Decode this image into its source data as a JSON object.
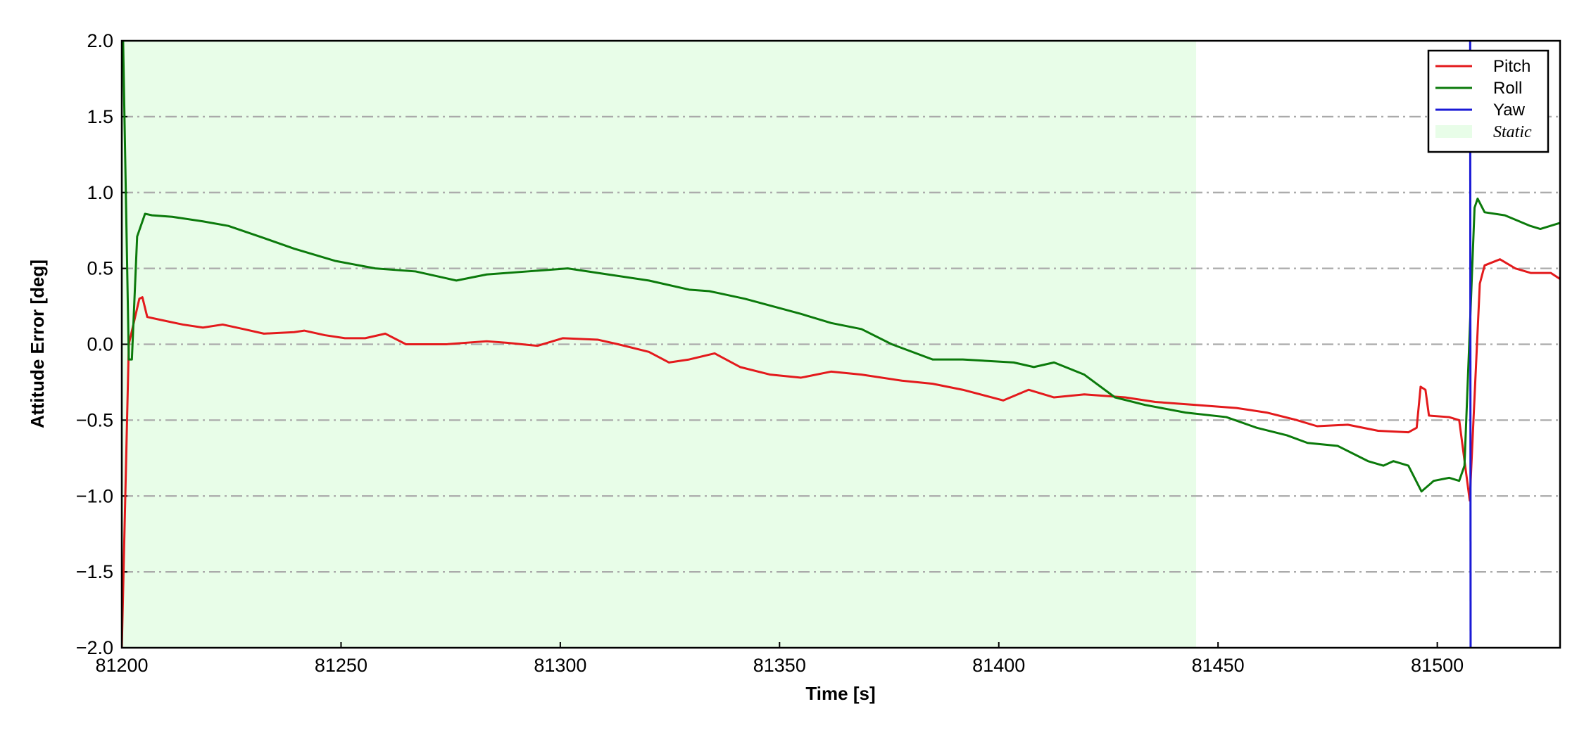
{
  "chart_data": {
    "type": "line",
    "xlabel": "Time [s]",
    "ylabel": "Attitude Error [deg]",
    "xlim": [
      81200,
      81528
    ],
    "ylim": [
      -2,
      2
    ],
    "xticks": [
      81200,
      81250,
      81300,
      81350,
      81400,
      81450,
      81500
    ],
    "yticks": [
      {
        "value": -2,
        "label": "−2.0"
      },
      {
        "value": -1.5,
        "label": "−1.5"
      },
      {
        "value": -1,
        "label": "−1.0"
      },
      {
        "value": -0.5,
        "label": "−0.5"
      },
      {
        "value": 0,
        "label": "0.0"
      },
      {
        "value": 0.5,
        "label": "0.5"
      },
      {
        "value": 1,
        "label": "1.0"
      },
      {
        "value": 1.5,
        "label": "1.5"
      },
      {
        "value": 2,
        "label": "2.0"
      }
    ],
    "grid": true,
    "legend": "upper right",
    "span": {
      "label": "Static",
      "xlim": [
        81200,
        81445
      ],
      "color": "#e8fde8"
    },
    "series": [
      {
        "name": "Pitch",
        "color": "#e31a1c",
        "x": [
          81200,
          81201.6,
          81204,
          81204.7,
          81205.8,
          81209,
          81213.9,
          81218.5,
          81223,
          81227.8,
          81232.4,
          81239.3,
          81241.6,
          81246.3,
          81250.9,
          81255.5,
          81260.1,
          81264.8,
          81274,
          81283.2,
          81287.8,
          81294.8,
          81300.6,
          81308.6,
          81313.2,
          81320.2,
          81324.8,
          81329.4,
          81335.2,
          81341,
          81347.9,
          81354.9,
          81361.8,
          81368.7,
          81377.9,
          81384.9,
          81391.8,
          81401,
          81406.8,
          81412.6,
          81419.5,
          81428.8,
          81435.7,
          81444.9,
          81454.2,
          81461.1,
          81468,
          81472.6,
          81479.6,
          81486.5,
          81493.4,
          81495.3,
          81496.2,
          81497.3,
          81498.1,
          81502.7,
          81505,
          81507.4,
          81509.7,
          81510.8,
          81514.3,
          81517.8,
          81521.3,
          81525.9,
          81528
        ],
        "values": [
          -2.0,
          0.0,
          0.3,
          0.31,
          0.18,
          0.16,
          0.13,
          0.11,
          0.13,
          0.1,
          0.07,
          0.08,
          0.09,
          0.06,
          0.04,
          0.04,
          0.07,
          0.0,
          0.0,
          0.02,
          0.01,
          -0.01,
          0.04,
          0.03,
          0.0,
          -0.05,
          -0.12,
          -0.1,
          -0.06,
          -0.15,
          -0.2,
          -0.22,
          -0.18,
          -0.2,
          -0.24,
          -0.26,
          -0.3,
          -0.37,
          -0.3,
          -0.35,
          -0.33,
          -0.35,
          -0.38,
          -0.4,
          -0.42,
          -0.45,
          -0.5,
          -0.54,
          -0.53,
          -0.57,
          -0.58,
          -0.55,
          -0.28,
          -0.3,
          -0.47,
          -0.48,
          -0.5,
          -1.03,
          0.4,
          0.52,
          0.56,
          0.5,
          0.47,
          0.47,
          0.43
        ]
      },
      {
        "name": "Roll",
        "color": "#0b7a0b",
        "x": [
          81200.3,
          81201.6,
          81202.3,
          81203.5,
          81205.3,
          81206.9,
          81211.5,
          81218.5,
          81224.3,
          81232.4,
          81239.3,
          81248.6,
          81257.8,
          81267,
          81276.3,
          81283.2,
          81292.5,
          81301.7,
          81310.9,
          81320.2,
          81329.4,
          81334,
          81342.1,
          81354.9,
          81361.8,
          81368.7,
          81375.6,
          81384.9,
          81391.8,
          81403.4,
          81408,
          81412.6,
          81419.5,
          81426.5,
          81433.4,
          81442.6,
          81451.9,
          81458.8,
          81465.7,
          81470.4,
          81477.3,
          81484.2,
          81487.7,
          81490,
          81493.4,
          81496.4,
          81499.2,
          81502.7,
          81505,
          81506.2,
          81508.5,
          81509.2,
          81510.8,
          81515.4,
          81521.2,
          81523.5,
          81528
        ],
        "values": [
          2.0,
          -0.1,
          -0.1,
          0.71,
          0.86,
          0.85,
          0.84,
          0.81,
          0.78,
          0.7,
          0.63,
          0.55,
          0.5,
          0.48,
          0.42,
          0.46,
          0.48,
          0.5,
          0.46,
          0.42,
          0.36,
          0.35,
          0.3,
          0.2,
          0.14,
          0.1,
          0.0,
          -0.1,
          -0.1,
          -0.12,
          -0.15,
          -0.12,
          -0.2,
          -0.35,
          -0.4,
          -0.45,
          -0.48,
          -0.55,
          -0.6,
          -0.65,
          -0.67,
          -0.77,
          -0.8,
          -0.77,
          -0.8,
          -0.97,
          -0.9,
          -0.88,
          -0.9,
          -0.8,
          0.9,
          0.96,
          0.87,
          0.85,
          0.78,
          0.76,
          0.8
        ]
      },
      {
        "name": "Yaw",
        "color": "#1a1ad6",
        "x": [
          81507.5,
          81507.6
        ],
        "values": [
          2.0,
          -2.0
        ]
      }
    ]
  }
}
